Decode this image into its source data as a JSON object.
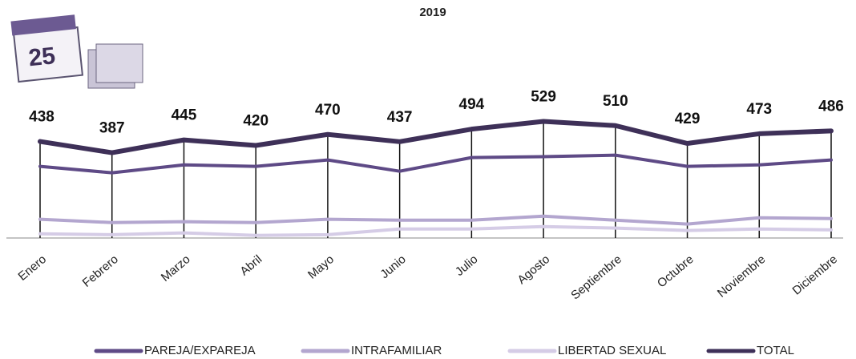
{
  "icon": {
    "day": "25"
  },
  "chart_data": {
    "type": "line",
    "title": "2019",
    "categories": [
      "Enero",
      "Febrero",
      "Marzo",
      "Abril",
      "Mayo",
      "Junio",
      "Julio",
      "Agosto",
      "Septiembre",
      "Octubre",
      "Noviembre",
      "Diciembre"
    ],
    "ylim": [
      0,
      600
    ],
    "series": [
      {
        "name": "PAREJA/EXPAREJA",
        "color": "#5e4a86",
        "values": [
          325,
          296,
          332,
          325,
          354,
          303,
          365,
          369,
          376,
          325,
          332,
          354
        ]
      },
      {
        "name": "INTRAFAMILIAR",
        "color": "#b3a6cf",
        "values": [
          85,
          70,
          74,
          70,
          85,
          81,
          81,
          99,
          81,
          63,
          92,
          88
        ]
      },
      {
        "name": "LIBERTAD SEXUAL",
        "color": "#d5cce6",
        "values": [
          19,
          15,
          23,
          12,
          15,
          41,
          41,
          52,
          45,
          34,
          41,
          37
        ]
      },
      {
        "name": "TOTAL",
        "color": "#3e3058",
        "values": [
          438,
          387,
          445,
          420,
          470,
          437,
          494,
          529,
          510,
          429,
          473,
          486
        ],
        "labels": true,
        "droplines": true
      }
    ],
    "legend": "bottom"
  }
}
